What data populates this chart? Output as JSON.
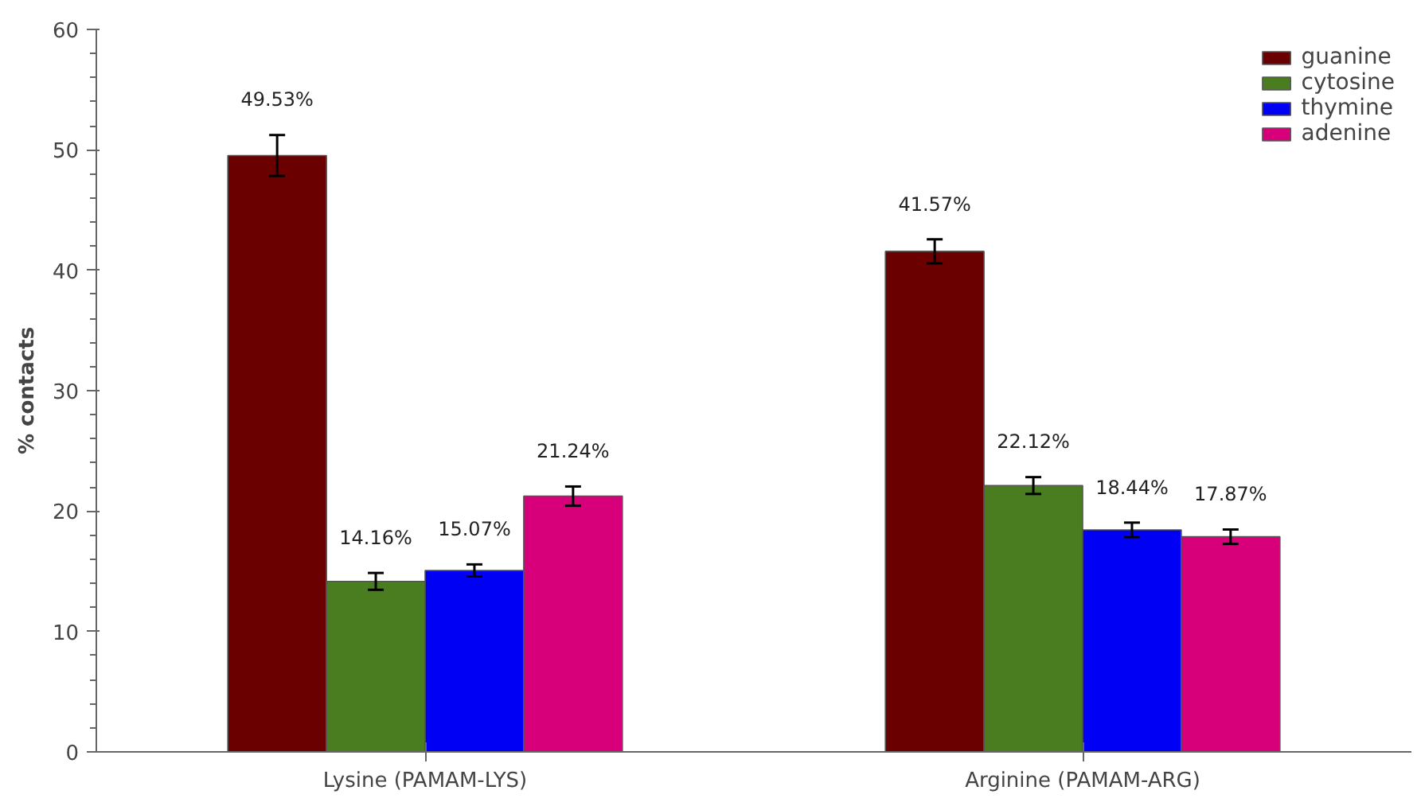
{
  "chart_data": {
    "type": "bar",
    "ylabel": "% contacts",
    "categories": [
      "Lysine (PAMAM-LYS)",
      "Arginine (PAMAM-ARG)"
    ],
    "series": [
      {
        "name": "guanine",
        "color": "#6b0000",
        "values": [
          49.53,
          41.57
        ],
        "errors": [
          1.7,
          1.0
        ],
        "value_labels": [
          "49.53%",
          "41.57%"
        ]
      },
      {
        "name": "cytosine",
        "color": "#4a7d20",
        "values": [
          14.16,
          22.12
        ],
        "errors": [
          0.7,
          0.7
        ],
        "value_labels": [
          "14.16%",
          "22.12%"
        ]
      },
      {
        "name": "thymine",
        "color": "#0000f5",
        "values": [
          15.07,
          18.44
        ],
        "errors": [
          0.5,
          0.6
        ],
        "value_labels": [
          "15.07%",
          "18.44%"
        ]
      },
      {
        "name": "adenine",
        "color": "#d8007a",
        "values": [
          21.24,
          17.87
        ],
        "errors": [
          0.8,
          0.6
        ],
        "value_labels": [
          "21.24%",
          "17.87%"
        ]
      }
    ],
    "ylim": [
      0,
      60
    ],
    "yticks": [
      0,
      10,
      20,
      30,
      40,
      50,
      60
    ],
    "grid": false,
    "legend": "top right"
  }
}
